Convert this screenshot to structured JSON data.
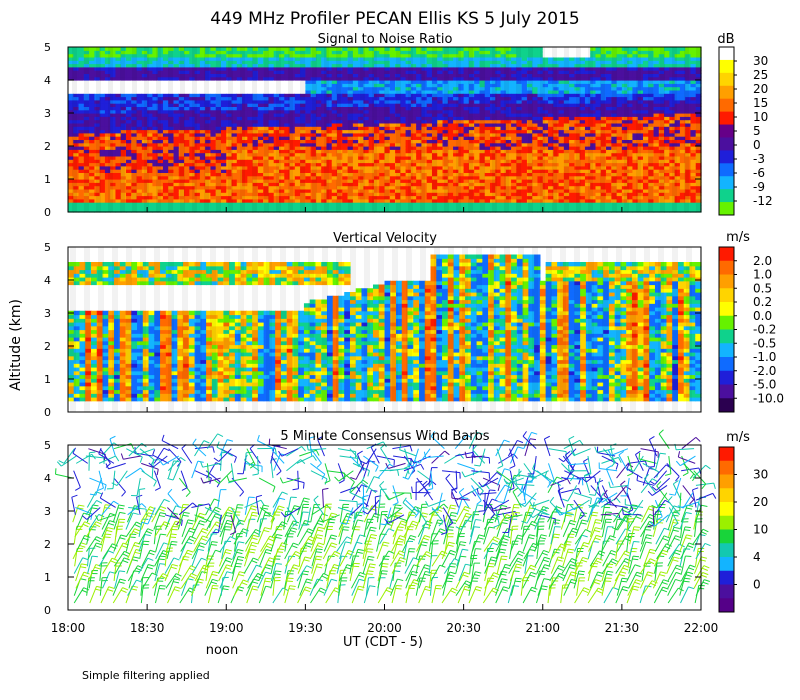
{
  "title": "449 MHz Profiler PECAN Ellis KS  5 July 2015",
  "ylabel": "Altitude (km)",
  "xlabel": "UT  (CDT - 5)",
  "noon_label": "noon",
  "footnote": "Simple filtering applied",
  "chart_data": [
    {
      "type": "heatmap",
      "title": "Signal to Noise Ratio",
      "x_range_ut_hours": [
        18,
        22
      ],
      "ylim": [
        0,
        5
      ],
      "y_ticks": [
        "0",
        "1",
        "2",
        "3",
        "4",
        "5"
      ],
      "x_ticks": [
        "18:00",
        "18:30",
        "19:00",
        "19:30",
        "20:00",
        "20:30",
        "21:00",
        "21:30",
        "22:00"
      ],
      "colorbar_unit": "dB",
      "colorbar_labels": [
        "30",
        "25",
        "20",
        "15",
        "10",
        "5",
        "0",
        "-3",
        "-6",
        "-9",
        "-12"
      ],
      "colorbar_colors": [
        "#ffffff",
        "#ffff00",
        "#ffd400",
        "#ff9f00",
        "#ff6a00",
        "#ff1a00",
        "#660088",
        "#4b0f9e",
        "#1f1fd9",
        "#0f6bff",
        "#13b4ff",
        "#0fd28c",
        "#66f200"
      ],
      "values_by_altitude_km": [
        {
          "alt_km": 0.25,
          "snr_db": 5
        },
        {
          "alt_km": 0.75,
          "snr_db": 12
        },
        {
          "alt_km": 1.25,
          "snr_db": 15
        },
        {
          "alt_km": 1.75,
          "snr_db": 10
        },
        {
          "alt_km": 2.25,
          "snr_db": 8
        },
        {
          "alt_km": 2.75,
          "snr_db": 2
        },
        {
          "alt_km": 3.25,
          "snr_db": 0
        },
        {
          "alt_km": 3.75,
          "snr_db": -6
        },
        {
          "alt_km": 4.25,
          "snr_db": 0
        },
        {
          "alt_km": 4.75,
          "snr_db": -12
        }
      ]
    },
    {
      "type": "heatmap",
      "title": "Vertical Velocity",
      "x_range_ut_hours": [
        18,
        22
      ],
      "ylim": [
        0,
        5
      ],
      "y_ticks": [
        "0",
        "1",
        "2",
        "3",
        "4",
        "5"
      ],
      "colorbar_unit": "m/s",
      "colorbar_labels": [
        "2.0",
        "1.0",
        "0.5",
        "0.2",
        "0.0",
        "-0.2",
        "-0.5",
        "-1.0",
        "-2.0",
        "-5.0",
        "-10.0"
      ],
      "colorbar_colors": [
        "#ff1a00",
        "#ff6a00",
        "#ff9f00",
        "#ffd400",
        "#ffff00",
        "#66f200",
        "#0fd28c",
        "#13b4ff",
        "#0f6bff",
        "#1f1fd9",
        "#4b0f9e",
        "#2b0050"
      ],
      "values_by_altitude_km": [
        {
          "alt_km": 0.75,
          "w_ms": -0.5
        },
        {
          "alt_km": 1.5,
          "w_ms": 0.5
        },
        {
          "alt_km": 2.5,
          "w_ms": 0.2
        },
        {
          "alt_km": 3.5,
          "w_ms": -0.2
        },
        {
          "alt_km": 4.25,
          "w_ms": 0.2
        }
      ]
    },
    {
      "type": "wind_barbs",
      "title": "5 Minute Consensus Wind Barbs",
      "x_range_ut_hours": [
        18,
        22
      ],
      "ylim": [
        0,
        5
      ],
      "y_ticks": [
        "0",
        "1",
        "2",
        "3",
        "4",
        "5"
      ],
      "colorbar_unit": "m/s",
      "colorbar_labels": [
        "30",
        "20",
        "10",
        "4",
        "0"
      ],
      "colorbar_colors": [
        "#ff1a00",
        "#ff6a00",
        "#ff9f00",
        "#ffd400",
        "#ffff00",
        "#9bf000",
        "#18d43a",
        "#13c8b0",
        "#13b4ff",
        "#1f1fd9",
        "#4b0f9e",
        "#550088"
      ],
      "values_by_altitude_km": [
        {
          "alt_km": 0.5,
          "speed_ms": 10
        },
        {
          "alt_km": 1.5,
          "speed_ms": 10
        },
        {
          "alt_km": 2.5,
          "speed_ms": 8
        },
        {
          "alt_km": 3.25,
          "speed_ms": 4
        },
        {
          "alt_km": 4.25,
          "speed_ms": 6
        }
      ]
    }
  ]
}
